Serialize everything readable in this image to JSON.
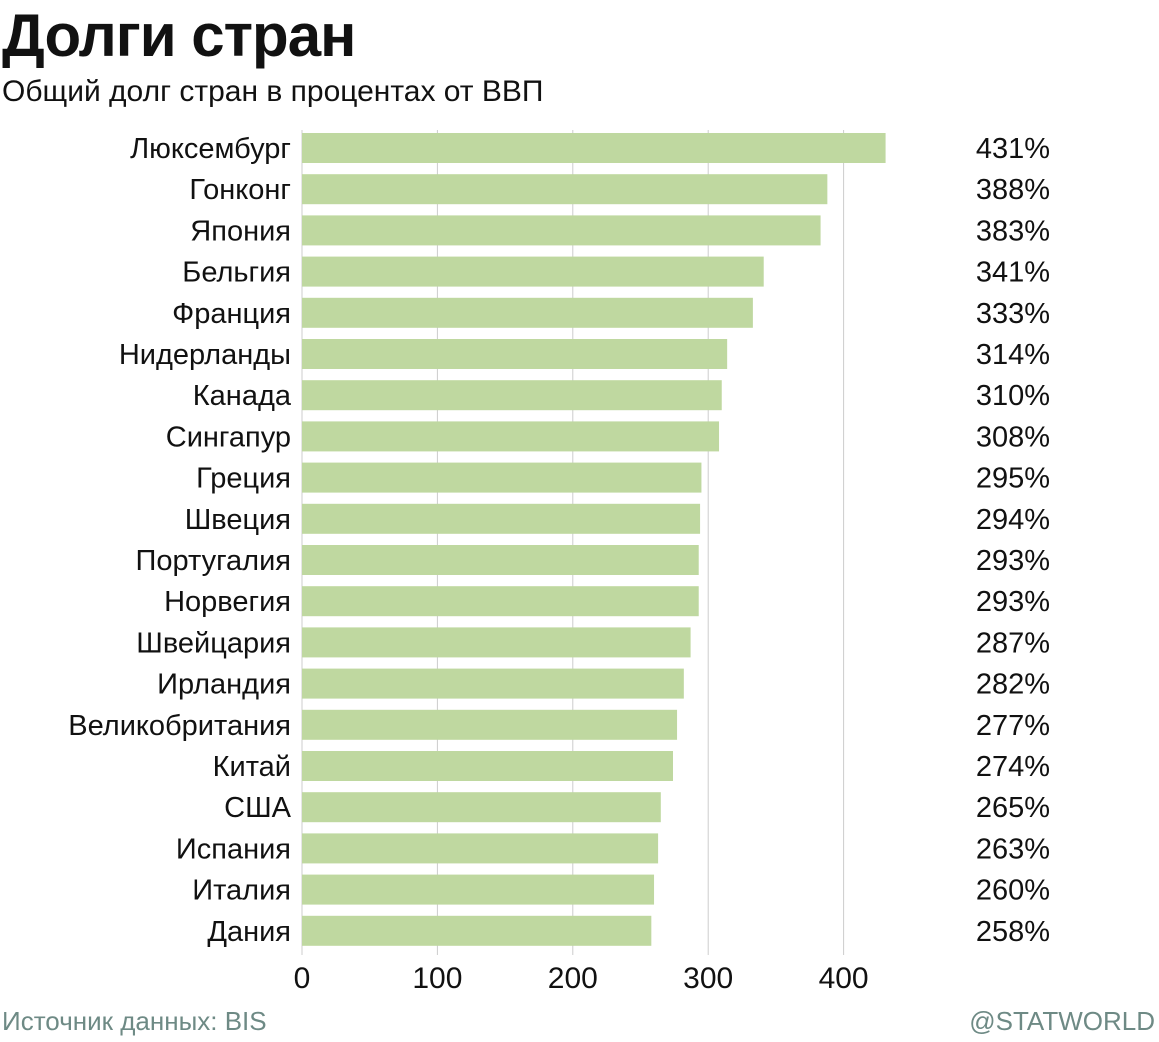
{
  "header": {
    "title": "Долги стран",
    "subtitle": "Общий долг стран в процентах от ВВП"
  },
  "footer": {
    "source": "Источник данных: BIS",
    "brand": "@STATWORLD"
  },
  "colors": {
    "bar": "#bfd8a0",
    "grid": "#cccccc",
    "text": "#111111",
    "footer_text": "#6e8a85"
  },
  "chart_data": {
    "type": "bar",
    "orientation": "horizontal",
    "categories": [
      "Люксембург",
      "Гонконг",
      "Япония",
      "Бельгия",
      "Франция",
      "Нидерланды",
      "Канада",
      "Сингапур",
      "Греция",
      "Швеция",
      "Португалия",
      "Норвегия",
      "Швейцария",
      "Ирландия",
      "Великобритания",
      "Китай",
      "США",
      "Испания",
      "Италия",
      "Дания"
    ],
    "values": [
      431,
      388,
      383,
      341,
      333,
      314,
      310,
      308,
      295,
      294,
      293,
      293,
      287,
      282,
      277,
      274,
      265,
      263,
      260,
      258
    ],
    "value_labels": [
      "431%",
      "388%",
      "383%",
      "341%",
      "333%",
      "314%",
      "310%",
      "308%",
      "295%",
      "294%",
      "293%",
      "293%",
      "287%",
      "282%",
      "277%",
      "274%",
      "265%",
      "263%",
      "260%",
      "258%"
    ],
    "title": "Долги стран",
    "subtitle": "Общий долг стран в процентах от ВВП",
    "xlabel": "",
    "ylabel": "",
    "xlim": [
      0,
      440
    ],
    "xticks": [
      0,
      100,
      200,
      300,
      400
    ],
    "xtick_labels": [
      "0",
      "100",
      "200",
      "300",
      "400"
    ],
    "grid": true,
    "legend": "none"
  }
}
